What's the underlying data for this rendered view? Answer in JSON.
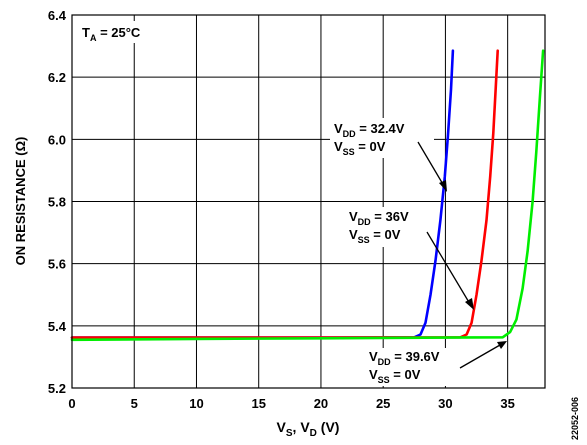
{
  "chart_data": {
    "type": "line",
    "xlabel": {
      "main": "V",
      "sub1": "S",
      "mid": ", V",
      "sub2": "D",
      "tail": " (V)"
    },
    "ylabel": "ON RESISTANCE (Ω)",
    "xlim": [
      0,
      38
    ],
    "ylim": [
      5.2,
      6.4
    ],
    "xticks": [
      0,
      5,
      10,
      15,
      20,
      25,
      30,
      35
    ],
    "xtick_labels": [
      "0",
      "5",
      "10",
      "15",
      "20",
      "25",
      "30",
      "35"
    ],
    "yticks": [
      5.2,
      5.4,
      5.6,
      5.8,
      6.0,
      6.2,
      6.4
    ],
    "ytick_labels": [
      "5.2",
      "5.4",
      "5.6",
      "5.8",
      "6.0",
      "6.2",
      "6.4"
    ],
    "grid": true,
    "condition": {
      "main": "T",
      "sub": "A",
      "tail": " = 25°C"
    },
    "series": [
      {
        "color": "#0000ff",
        "annotation": {
          "line1_main": "V",
          "line1_sub": "DD",
          "line1_tail": " = 32.4V",
          "line2_main": "V",
          "line2_sub": "SS",
          "line2_tail": " = 0V"
        },
        "points": [
          [
            0,
            5.362
          ],
          [
            10,
            5.362
          ],
          [
            20,
            5.362
          ],
          [
            27.5,
            5.363
          ],
          [
            28.0,
            5.372
          ],
          [
            28.4,
            5.41
          ],
          [
            28.8,
            5.5
          ],
          [
            29.2,
            5.61
          ],
          [
            29.6,
            5.74
          ],
          [
            29.95,
            5.88
          ],
          [
            30.2,
            6.01
          ],
          [
            30.45,
            6.16
          ],
          [
            30.6,
            6.285
          ]
        ]
      },
      {
        "color": "#ff0000",
        "annotation": {
          "line1_main": "V",
          "line1_sub": "DD",
          "line1_tail": " = 36V",
          "line2_main": "V",
          "line2_sub": "SS",
          "line2_tail": " = 0V"
        },
        "points": [
          [
            0,
            5.362
          ],
          [
            10,
            5.362
          ],
          [
            20,
            5.362
          ],
          [
            31.2,
            5.363
          ],
          [
            31.7,
            5.372
          ],
          [
            32.1,
            5.41
          ],
          [
            32.5,
            5.5
          ],
          [
            32.9,
            5.61
          ],
          [
            33.3,
            5.74
          ],
          [
            33.6,
            5.88
          ],
          [
            33.85,
            6.02
          ],
          [
            34.05,
            6.17
          ],
          [
            34.2,
            6.285
          ]
        ]
      },
      {
        "color": "#00ee00",
        "annotation": {
          "line1_main": "V",
          "line1_sub": "DD",
          "line1_tail": " = 39.6V",
          "line2_main": "V",
          "line2_sub": "SS",
          "line2_tail": " = 0V"
        },
        "points": [
          [
            0,
            5.355
          ],
          [
            10,
            5.358
          ],
          [
            20,
            5.36
          ],
          [
            30,
            5.362
          ],
          [
            34.6,
            5.363
          ],
          [
            35.2,
            5.38
          ],
          [
            35.7,
            5.42
          ],
          [
            36.2,
            5.52
          ],
          [
            36.6,
            5.64
          ],
          [
            37.0,
            5.8
          ],
          [
            37.3,
            5.96
          ],
          [
            37.6,
            6.14
          ],
          [
            37.85,
            6.285
          ]
        ]
      }
    ],
    "figure_id": "22052-006"
  }
}
